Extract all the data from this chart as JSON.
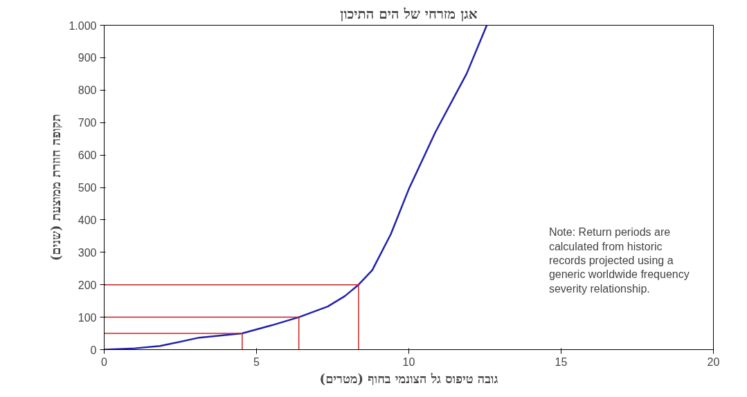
{
  "chart_data": {
    "type": "line",
    "title": "אגן מזרחי של הים התיכון",
    "xlabel": "גובה טיפוס גל הצונמי בחוף (מטרים)",
    "ylabel": "תקופה חוזרת ממוצעת (שנים)",
    "xlim": [
      0,
      20
    ],
    "xticks": [
      0,
      5,
      10,
      15,
      20
    ],
    "ylim": [
      0,
      1000
    ],
    "yticks": [
      0,
      100,
      200,
      300,
      400,
      500,
      600,
      700,
      800,
      900,
      {
        "value": 1000,
        "label": "1.000"
      }
    ],
    "grid": false,
    "marker": "none",
    "line_style": "solid",
    "series": [
      {
        "color": "#2020b0",
        "x": [
          0,
          1,
          1.83,
          3.12,
          4.53,
          5.5,
          6.39,
          7.34,
          7.9,
          8.35,
          8.8,
          9.41,
          10,
          10.87,
          11.9,
          12.56
        ],
        "values": [
          0,
          4,
          11,
          37,
          50,
          75,
          100,
          133,
          165,
          200,
          245,
          356,
          495,
          670,
          851,
          1000
        ]
      },
      {
        "color": "#cc2020",
        "x": [
          0,
          4.53,
          4.53
        ],
        "values": [
          50,
          50,
          0
        ]
      },
      {
        "color": "#cc2020",
        "x": [
          0,
          6.39,
          6.39
        ],
        "values": [
          100,
          100,
          0
        ]
      },
      {
        "color": "#cc2020",
        "x": [
          0,
          8.35,
          8.35
        ],
        "values": [
          200,
          200,
          0
        ]
      }
    ],
    "annotations": [
      "Note: Return periods are calculated from historic records projected using a generic worldwide frequency severity relationship."
    ]
  }
}
